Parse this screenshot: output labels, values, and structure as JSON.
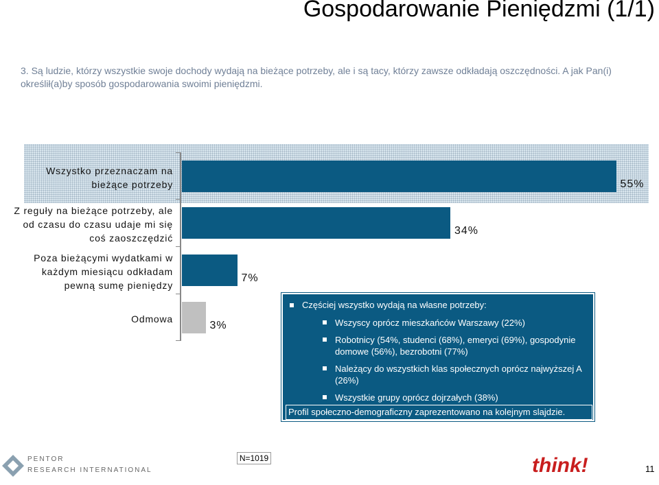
{
  "title": "Gospodarowanie Pieniędzmi (1/1)",
  "question": "3. Są ludzie, którzy wszystkie swoje dochody wydają na bieżące potrzeby, ale i są tacy, którzy zawsze odkładają oszczędności. A jak Pan(i) określił(a)by sposób gospodarowania swoimi pieniędzmi.",
  "chart_data": {
    "type": "bar",
    "orientation": "horizontal",
    "categories": [
      "Wszystko przeznaczam na\nbieżące potrzeby",
      "Z reguły na bieżące potrzeby, ale\nod czasu do czasu udaje mi się\ncoś zaoszczędzić",
      "Poza bieżącymi wydatkami w\nkażdym miesiącu odkładam\npewną sumę pieniędzy",
      "Odmowa"
    ],
    "values": [
      55,
      34,
      7,
      3
    ],
    "value_labels": [
      "55%",
      "34%",
      "7%",
      "3%"
    ],
    "colors": [
      "#0b5a82",
      "#0b5a82",
      "#0b5a82",
      "#c0c0c0"
    ]
  },
  "callout": {
    "header": "Częściej wszystko wydają na własne potrzeby:",
    "items": [
      "Wszyscy oprócz mieszkańców Warszawy (22%)",
      "Robotnicy (54%, studenci (68%), emeryci (69%), gospodynie domowe (56%), bezrobotni (77%)",
      "Należący do wszystkich klas społecznych oprócz najwyższej A (26%)",
      "Wszystkie grupy oprócz dojrzałych (38%)"
    ],
    "note": "Profil społeczno-demograficzny zaprezentowano na kolejnym slajdzie."
  },
  "footer": {
    "sample": "N=1019",
    "logo_left_1": "PENTOR",
    "logo_left_2": "RESEARCH INTERNATIONAL",
    "logo_right": "think!",
    "page": "11"
  }
}
